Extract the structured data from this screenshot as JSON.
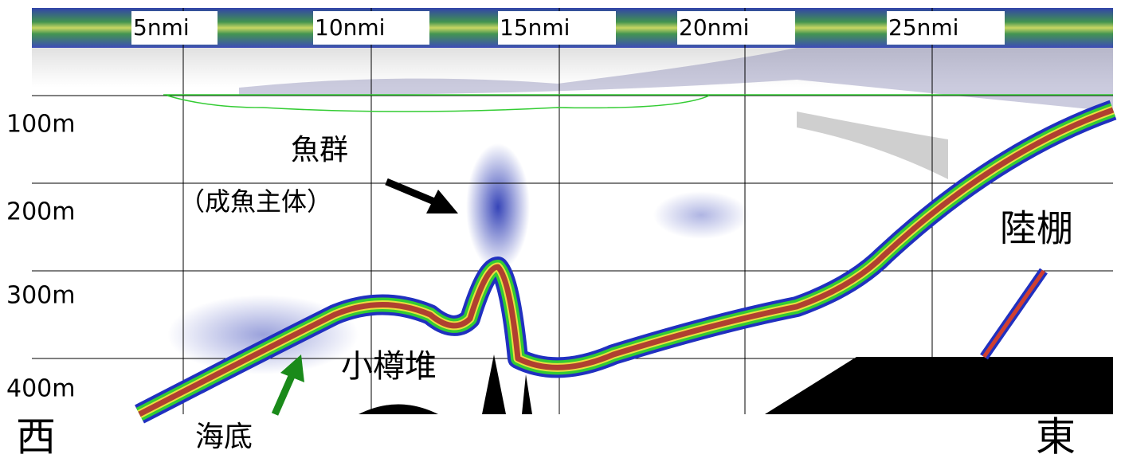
{
  "distance_labels": [
    "5nmi",
    "10nmi",
    "15nmi",
    "20nmi",
    "25nmi"
  ],
  "depth_labels": [
    "100m",
    "200m",
    "300m",
    "400m"
  ],
  "annotations": {
    "fish_school": "魚群",
    "fish_note": "（成魚主体）",
    "shelf": "陸棚",
    "bank": "小樽堆",
    "seabed": "海底",
    "west": "西",
    "east": "東"
  }
}
